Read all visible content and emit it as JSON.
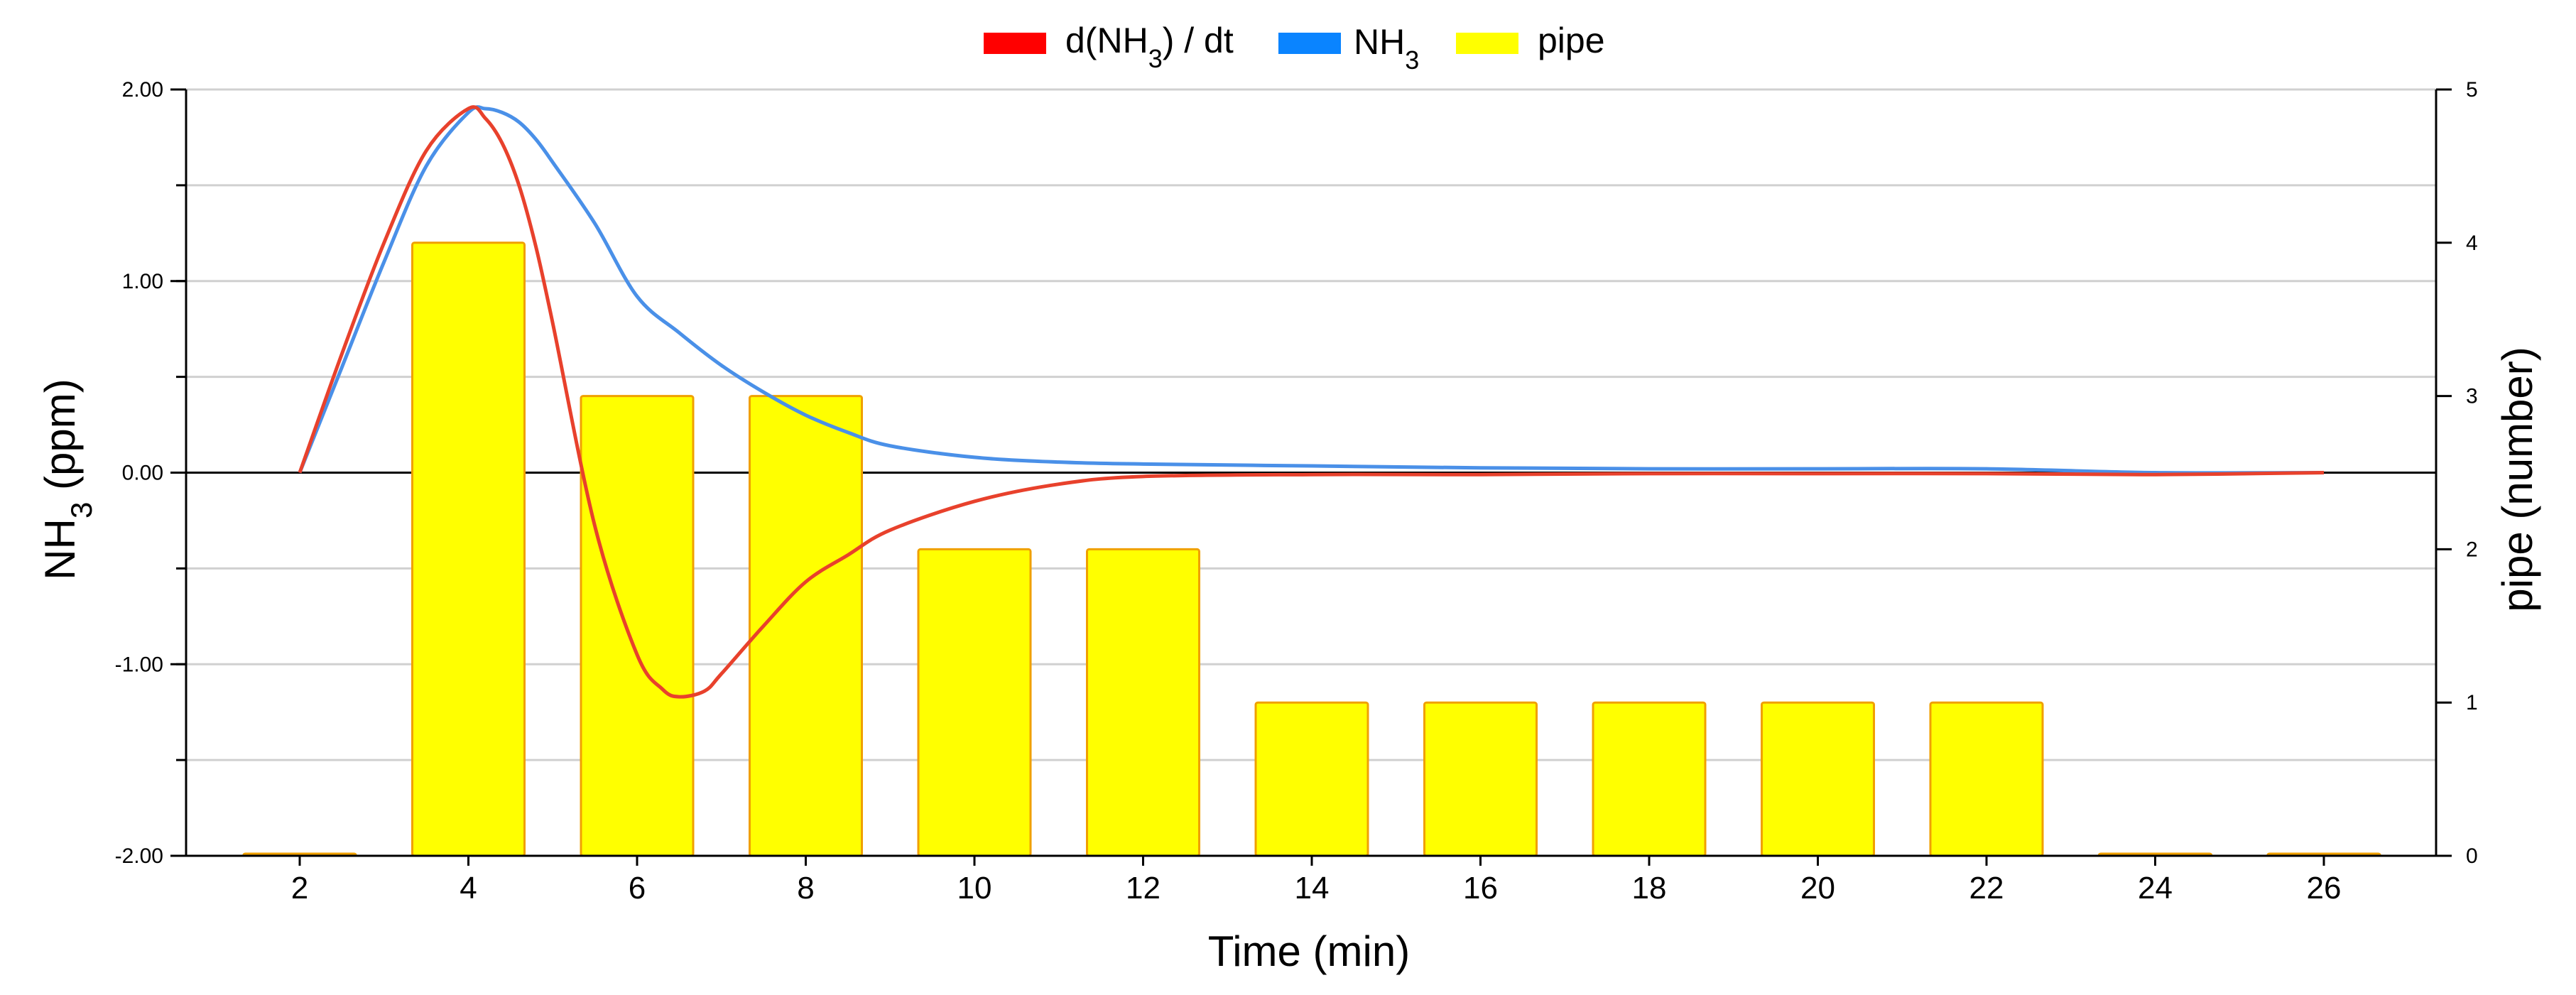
{
  "chart_data": {
    "type": "bar+line",
    "xlabel": "Time (min)",
    "ylabel_left": {
      "base": "NH",
      "sub": "3",
      "rest": " (ppm)"
    },
    "ylabel_right": "pipe (number)",
    "categories": [
      2,
      4,
      6,
      8,
      10,
      12,
      14,
      16,
      18,
      20,
      22,
      24,
      26
    ],
    "x_tick_labels": [
      "2",
      "4",
      "6",
      "8",
      "10",
      "12",
      "14",
      "16",
      "18",
      "20",
      "22",
      "24",
      "26"
    ],
    "y_left": {
      "min": -2,
      "max": 2,
      "tick_labels": [
        "2.00",
        "1.00",
        "0.00",
        "-1.00",
        "-2.00"
      ],
      "tick_values": [
        2,
        1,
        0,
        -1,
        -2
      ]
    },
    "y_right": {
      "min": 0,
      "max": 5,
      "tick_labels": [
        "5",
        "4",
        "3",
        "2",
        "1",
        "0"
      ],
      "tick_values": [
        5,
        4,
        3,
        2,
        1,
        0
      ]
    },
    "grid": true,
    "legend_position": "top-center",
    "legend": [
      {
        "label_base": "d(NH",
        "label_sub": "3",
        "label_rest": ") / dt",
        "color": "#ff0000"
      },
      {
        "label_base": "NH",
        "label_sub": "3",
        "label_rest": "",
        "color": "#0a84ff"
      },
      {
        "label_base": "pipe",
        "label_sub": "",
        "label_rest": "",
        "color": "#ffff00"
      }
    ],
    "bars": {
      "name": "pipe",
      "axis": "right",
      "fill": "#ffff00",
      "stroke": "#f0a000",
      "x": [
        2,
        4,
        6,
        8,
        10,
        12,
        14,
        16,
        18,
        20,
        22,
        24,
        26
      ],
      "values": [
        0,
        4,
        3,
        3,
        2,
        2,
        1,
        1,
        1,
        1,
        1,
        0,
        0
      ]
    },
    "series": [
      {
        "name": "NH3",
        "axis": "left",
        "color": "#4a90e8",
        "x": [
          2,
          2.5,
          3,
          3.5,
          4,
          4.2,
          4.4,
          4.6,
          4.8,
          5,
          5.5,
          6,
          6.5,
          7,
          7.5,
          8,
          8.5,
          9,
          10,
          11,
          12,
          14,
          16,
          18,
          20,
          22,
          24,
          26
        ],
        "values": [
          0,
          0.55,
          1.1,
          1.6,
          1.88,
          1.9,
          1.88,
          1.83,
          1.74,
          1.62,
          1.3,
          0.92,
          0.73,
          0.56,
          0.42,
          0.3,
          0.21,
          0.14,
          0.08,
          0.055,
          0.045,
          0.035,
          0.025,
          0.02,
          0.02,
          0.02,
          0.0,
          0.0
        ]
      },
      {
        "name": "d(NH3) / dt",
        "axis": "left",
        "color": "#e8412c",
        "x": [
          2,
          2.5,
          3,
          3.5,
          4,
          4.2,
          4.4,
          4.6,
          4.8,
          5,
          5.5,
          6,
          6.3,
          6.5,
          6.8,
          7,
          7.5,
          8,
          8.5,
          9,
          10,
          11,
          12,
          14,
          16,
          18,
          20,
          22,
          24,
          26
        ],
        "values": [
          0,
          0.62,
          1.2,
          1.68,
          1.9,
          1.85,
          1.72,
          1.5,
          1.18,
          0.78,
          -0.28,
          -0.95,
          -1.13,
          -1.17,
          -1.14,
          -1.05,
          -0.8,
          -0.57,
          -0.43,
          -0.3,
          -0.15,
          -0.06,
          -0.02,
          -0.01,
          -0.01,
          -0.005,
          -0.005,
          -0.005,
          -0.01,
          0.0
        ]
      }
    ]
  }
}
